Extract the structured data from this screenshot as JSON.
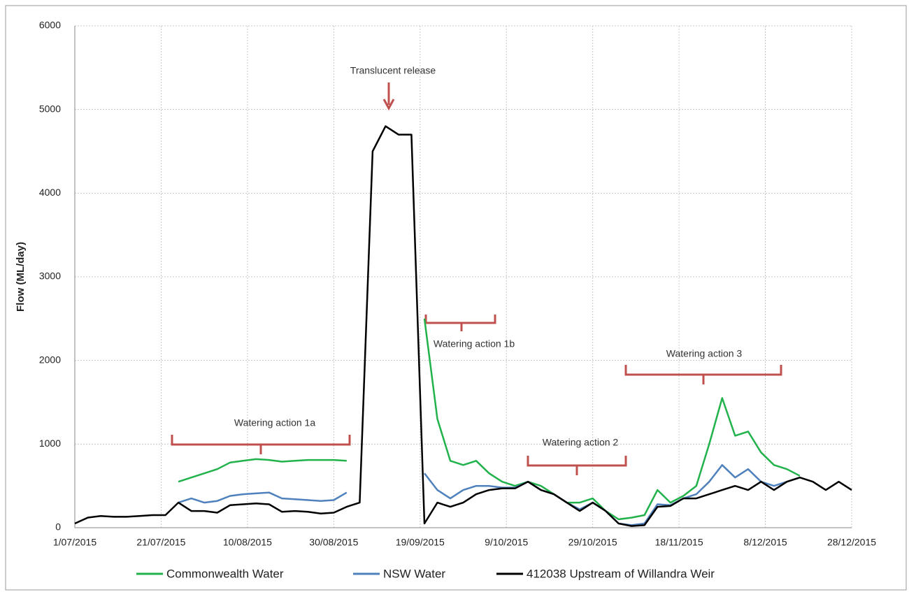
{
  "chart_data": {
    "type": "line",
    "y_label": "Flow (ML/day)",
    "x": [
      "1/07/2015",
      "4/07/2015",
      "7/07/2015",
      "10/07/2015",
      "13/07/2015",
      "16/07/2015",
      "19/07/2015",
      "22/07/2015",
      "25/07/2015",
      "28/07/2015",
      "31/07/2015",
      "3/08/2015",
      "6/08/2015",
      "9/08/2015",
      "12/08/2015",
      "15/08/2015",
      "18/08/2015",
      "21/08/2015",
      "24/08/2015",
      "27/08/2015",
      "30/08/2015",
      "2/09/2015",
      "5/09/2015",
      "8/09/2015",
      "11/09/2015",
      "14/09/2015",
      "17/09/2015",
      "20/09/2015",
      "23/09/2015",
      "26/09/2015",
      "29/09/2015",
      "2/10/2015",
      "5/10/2015",
      "8/10/2015",
      "11/10/2015",
      "14/10/2015",
      "17/10/2015",
      "20/10/2015",
      "23/10/2015",
      "26/10/2015",
      "29/10/2015",
      "1/11/2015",
      "4/11/2015",
      "7/11/2015",
      "10/11/2015",
      "13/11/2015",
      "16/11/2015",
      "19/11/2015",
      "22/11/2015",
      "25/11/2015",
      "28/11/2015",
      "1/12/2015",
      "4/12/2015",
      "7/12/2015",
      "10/12/2015",
      "13/12/2015",
      "16/12/2015",
      "19/12/2015",
      "22/12/2015",
      "25/12/2015",
      "28/12/2015"
    ],
    "series": [
      {
        "name": "Commonwealth Water",
        "color": "#22b24c",
        "values": [
          null,
          null,
          null,
          null,
          null,
          null,
          null,
          null,
          550,
          600,
          650,
          700,
          780,
          800,
          820,
          810,
          790,
          800,
          810,
          810,
          810,
          800,
          null,
          null,
          null,
          null,
          null,
          2500,
          1300,
          800,
          750,
          800,
          650,
          550,
          500,
          550,
          500,
          400,
          300,
          300,
          350,
          200,
          100,
          120,
          150,
          450,
          300,
          380,
          500,
          1000,
          1550,
          1100,
          1150,
          900,
          750,
          700,
          620,
          null,
          null,
          null,
          null
        ]
      },
      {
        "name": "NSW Water",
        "color": "#4f81bd",
        "values": [
          null,
          null,
          null,
          null,
          null,
          null,
          null,
          null,
          300,
          350,
          300,
          320,
          380,
          400,
          410,
          420,
          350,
          340,
          330,
          320,
          330,
          420,
          null,
          null,
          null,
          null,
          null,
          650,
          450,
          350,
          450,
          500,
          500,
          480,
          480,
          550,
          450,
          400,
          300,
          220,
          300,
          200,
          50,
          30,
          50,
          280,
          270,
          350,
          400,
          550,
          750,
          600,
          700,
          550,
          500,
          550,
          600,
          null,
          null,
          null,
          null
        ]
      },
      {
        "name": "412038 Upstream of Willandra Weir",
        "color": "#000000",
        "values": [
          50,
          120,
          140,
          130,
          130,
          140,
          150,
          150,
          300,
          200,
          200,
          180,
          270,
          280,
          290,
          280,
          190,
          200,
          190,
          170,
          180,
          250,
          300,
          4500,
          4800,
          4700,
          4700,
          50,
          300,
          250,
          300,
          400,
          450,
          470,
          470,
          550,
          450,
          400,
          300,
          200,
          300,
          200,
          50,
          20,
          30,
          250,
          260,
          350,
          350,
          400,
          450,
          500,
          450,
          550,
          450,
          550,
          600,
          550,
          450,
          550,
          450
        ]
      }
    ],
    "xlim": [
      "1/07/2015",
      "28/12/2015"
    ],
    "xticks": [
      "1/07/2015",
      "21/07/2015",
      "10/08/2015",
      "30/08/2015",
      "19/09/2015",
      "9/10/2015",
      "29/10/2015",
      "18/11/2015",
      "8/12/2015",
      "28/12/2015"
    ],
    "ylim": [
      0,
      6000
    ],
    "yticks": [
      0,
      1000,
      2000,
      3000,
      4000,
      5000,
      6000
    ],
    "grid": true,
    "annotations": [
      "Translucent release",
      "Watering action 1a",
      "Watering action 1b",
      "Watering action 2",
      "Watering action 3"
    ]
  }
}
